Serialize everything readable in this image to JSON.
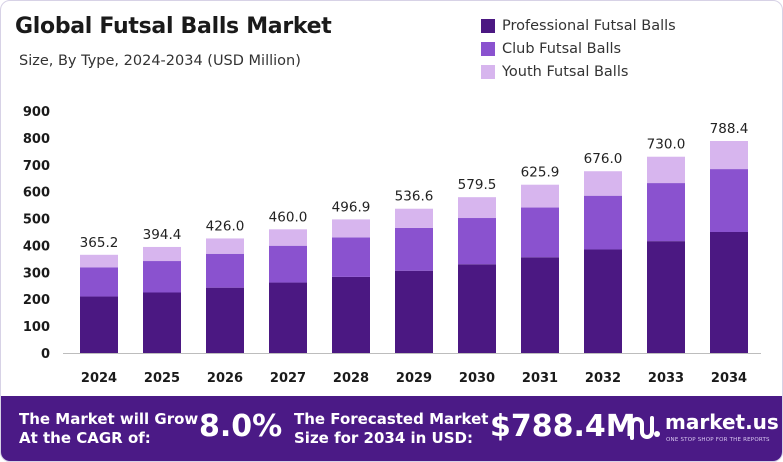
{
  "header": {
    "title": "Global Futsal Balls Market",
    "subtitle": "Size, By Type, 2024-2034 (USD Million)"
  },
  "colors": {
    "professional": "#4b1882",
    "club": "#8a52cf",
    "youth": "#d7b5ee",
    "footer_bg": "#4b1a86"
  },
  "chart_data": {
    "type": "bar",
    "stacked": true,
    "categories": [
      "2024",
      "2025",
      "2026",
      "2027",
      "2028",
      "2029",
      "2030",
      "2031",
      "2032",
      "2033",
      "2034"
    ],
    "series": [
      {
        "name": "Professional Futsal Balls",
        "values": [
          210,
          225,
          243,
          262,
          283,
          306,
          330,
          356,
          385,
          416,
          450
        ]
      },
      {
        "name": "Club Futsal Balls",
        "values": [
          108,
          117,
          126,
          137,
          147,
          159,
          172,
          185,
          200,
          216,
          234
        ]
      },
      {
        "name": "Youth Futsal Balls",
        "values": [
          47.2,
          52.4,
          57.0,
          61.0,
          66.9,
          71.6,
          77.5,
          84.9,
          91.0,
          98.0,
          104.4
        ]
      }
    ],
    "totals": [
      365.2,
      394.4,
      426.0,
      460.0,
      496.9,
      536.6,
      579.5,
      625.9,
      676.0,
      730.0,
      788.4
    ],
    "total_labels": [
      "365.2",
      "394.4",
      "426.0",
      "460.0",
      "496.9",
      "536.6",
      "579.5",
      "625.9",
      "676.0",
      "730.0",
      "788.4"
    ],
    "y_ticks": [
      "0",
      "100",
      "200",
      "300",
      "400",
      "500",
      "600",
      "700",
      "800",
      "900"
    ],
    "ylim": [
      0,
      900
    ],
    "grid": false,
    "legend_position": "top-right"
  },
  "footer": {
    "cagr_line1": "The Market will Grow",
    "cagr_line2": "At the CAGR of:",
    "cagr_value": "8.0%",
    "forecast_line1": "The Forecasted Market",
    "forecast_line2": "Size for 2034 in USD:",
    "forecast_value": "$788.4M",
    "brand": "market.us",
    "tagline": "ONE STOP SHOP FOR THE REPORTS"
  }
}
